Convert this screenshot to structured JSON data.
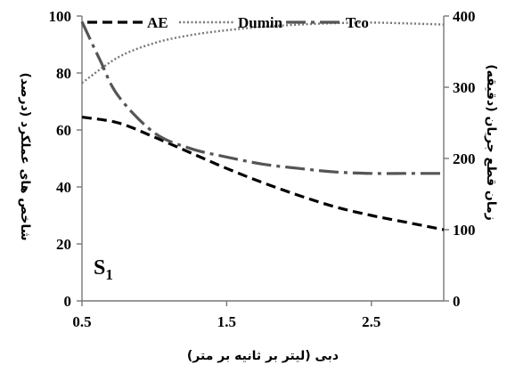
{
  "chart_data": {
    "type": "line",
    "xlabel": "دبی (لیتر بر ثانیه بر متر)",
    "ylabel_left": "شاخص های عملکرد (درصد)",
    "ylabel_right": "زمان قطع جریان (دقیقه)",
    "xlim": [
      0.5,
      3.0
    ],
    "ylim_left": [
      0,
      100
    ],
    "ylim_right": [
      0,
      400
    ],
    "x_ticks": [
      "0.5",
      "1.5",
      "2.5"
    ],
    "y_left_ticks": [
      "0",
      "20",
      "40",
      "60",
      "80",
      "100"
    ],
    "y_right_ticks": [
      "0",
      "100",
      "200",
      "300",
      "400"
    ],
    "grid": false,
    "legend_position": "top",
    "annotation": {
      "base": "S",
      "sub": "1"
    },
    "series": [
      {
        "name": "AE",
        "axis": "left",
        "style": "dashed",
        "x": [
          0.5,
          0.75,
          1.0,
          1.25,
          1.5,
          1.75,
          2.0,
          2.25,
          2.5,
          2.75,
          3.0
        ],
        "y": [
          64.5,
          62.5,
          57.5,
          52,
          46.5,
          41.5,
          37,
          33,
          30,
          27.5,
          25
        ]
      },
      {
        "name": "Dumin",
        "axis": "left",
        "style": "dotted",
        "x": [
          0.5,
          0.75,
          1.0,
          1.25,
          1.5,
          1.75,
          2.0,
          2.25,
          2.5,
          2.75,
          3.0
        ],
        "y": [
          76.5,
          85.5,
          90.5,
          93.3,
          95,
          96.2,
          97,
          97.5,
          97.7,
          97.4,
          97
        ]
      },
      {
        "name": "Tco",
        "axis": "right",
        "style": "dash-dot",
        "x": [
          0.5,
          0.625,
          0.75,
          1.0,
          1.25,
          1.5,
          1.75,
          2.0,
          2.25,
          2.5,
          2.75,
          3.0
        ],
        "y": [
          392,
          338,
          288,
          236,
          214,
          202,
          192,
          186,
          181,
          179,
          179,
          179
        ]
      }
    ]
  }
}
